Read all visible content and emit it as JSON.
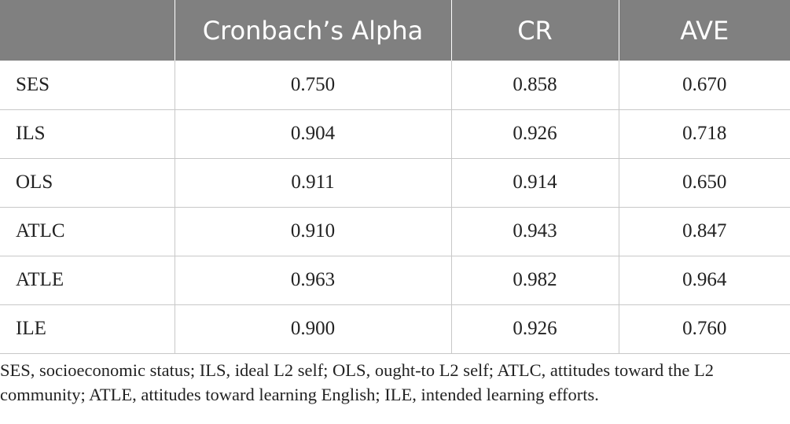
{
  "table": {
    "headers": [
      "",
      "Cronbach’s Alpha",
      "CR",
      "AVE"
    ],
    "rows": [
      {
        "label": "SES",
        "alpha": "0.750",
        "cr": "0.858",
        "ave": "0.670"
      },
      {
        "label": "ILS",
        "alpha": "0.904",
        "cr": "0.926",
        "ave": "0.718"
      },
      {
        "label": "OLS",
        "alpha": "0.911",
        "cr": "0.914",
        "ave": "0.650"
      },
      {
        "label": "ATLC",
        "alpha": "0.910",
        "cr": "0.943",
        "ave": "0.847"
      },
      {
        "label": "ATLE",
        "alpha": "0.963",
        "cr": "0.982",
        "ave": "0.964"
      },
      {
        "label": "ILE",
        "alpha": "0.900",
        "cr": "0.926",
        "ave": "0.760"
      }
    ]
  },
  "footnote": "SES, socioeconomic status; ILS, ideal L2 self; OLS, ought-to L2 self; ATLC, attitudes toward the L2 community; ATLE, attitudes toward learning English; ILE, intended learning efforts.",
  "colors": {
    "header_bg": "#808080",
    "header_text": "#ffffff",
    "grid": "#c8c8c8"
  }
}
